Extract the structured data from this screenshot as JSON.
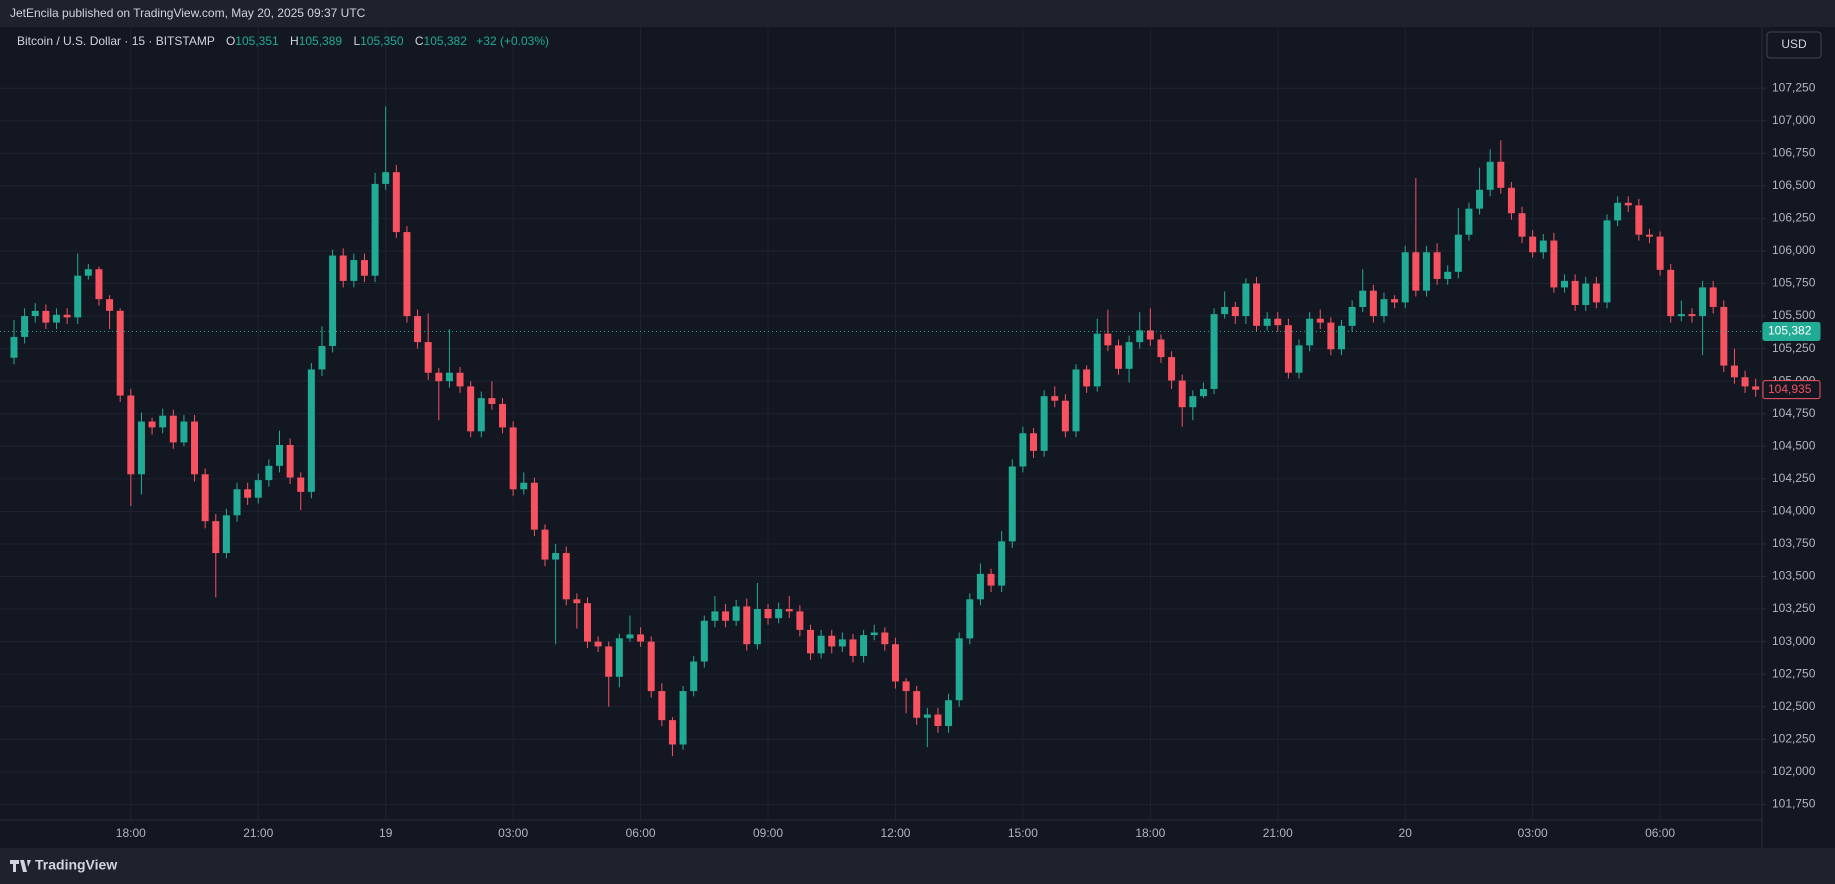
{
  "attribution": "JetEncila published on TradingView.com, May 20, 2025 09:37 UTC",
  "footer": "TradingView",
  "currency_button": "USD",
  "legend": {
    "symbol": "Bitcoin / U.S. Dollar · 15 · BITSTAMP",
    "items": [
      {
        "key": "O",
        "value": "105,351"
      },
      {
        "key": "H",
        "value": "105,389"
      },
      {
        "key": "L",
        "value": "105,350"
      },
      {
        "key": "C",
        "value": "105,382"
      }
    ],
    "change": "+32 (+0.03%)"
  },
  "chart_data": {
    "type": "candlestick",
    "up_color": "#22ab94",
    "down_color": "#f7525f",
    "grid": true,
    "categories": [
      null,
      null,
      null,
      null,
      null,
      null,
      null,
      null,
      null,
      null,
      null,
      "18:00",
      null,
      null,
      null,
      null,
      null,
      null,
      null,
      null,
      null,
      null,
      null,
      "21:00",
      null,
      null,
      null,
      null,
      null,
      null,
      null,
      null,
      null,
      null,
      null,
      "19",
      null,
      null,
      null,
      null,
      null,
      null,
      null,
      null,
      null,
      null,
      null,
      "03:00",
      null,
      null,
      null,
      null,
      null,
      null,
      null,
      null,
      null,
      null,
      null,
      "06:00",
      null,
      null,
      null,
      null,
      null,
      null,
      null,
      null,
      null,
      null,
      null,
      "09:00",
      null,
      null,
      null,
      null,
      null,
      null,
      null,
      null,
      null,
      null,
      null,
      "12:00",
      null,
      null,
      null,
      null,
      null,
      null,
      null,
      null,
      null,
      null,
      null,
      "15:00",
      null,
      null,
      null,
      null,
      null,
      null,
      null,
      null,
      null,
      null,
      null,
      "18:00",
      null,
      null,
      null,
      null,
      null,
      null,
      null,
      null,
      null,
      null,
      null,
      "21:00",
      null,
      null,
      null,
      null,
      null,
      null,
      null,
      null,
      null,
      null,
      null,
      "20",
      null,
      null,
      null,
      null,
      null,
      null,
      null,
      null,
      null,
      null,
      null,
      "03:00",
      null,
      null,
      null,
      null,
      null,
      null,
      null,
      null,
      null,
      null,
      null,
      "06:00",
      null,
      null,
      null,
      null,
      null,
      null,
      null,
      null,
      null
    ],
    "open": [
      105180,
      105340,
      105500,
      105540,
      105450,
      105510,
      105490,
      105810,
      105860,
      105630,
      105540,
      104890,
      104285,
      104690,
      104645,
      104735,
      104530,
      104690,
      104285,
      103925,
      103680,
      103970,
      104170,
      104105,
      104240,
      104350,
      104510,
      104260,
      104150,
      105090,
      105270,
      105965,
      105770,
      105930,
      105810,
      106515,
      106605,
      106145,
      105500,
      105300,
      105065,
      105000,
      105065,
      104960,
      104615,
      104870,
      104825,
      104645,
      104170,
      104220,
      103860,
      103630,
      103680,
      103325,
      103295,
      103000,
      102963,
      102730,
      103025,
      103055,
      103000,
      102620,
      102397,
      102210,
      102620,
      102847,
      103160,
      103232,
      103160,
      103270,
      102980,
      103250,
      103180,
      103250,
      103232,
      103090,
      102910,
      103045,
      102963,
      103017,
      102890,
      103050,
      103070,
      102980,
      102694,
      102620,
      102415,
      102440,
      102352,
      102550,
      103025,
      103325,
      103520,
      103430,
      103770,
      104345,
      104600,
      104465,
      104885,
      104850,
      104615,
      105090,
      104960,
      105365,
      105275,
      105095,
      105300,
      105390,
      105320,
      105185,
      105005,
      104800,
      104885,
      104940,
      105515,
      105570,
      105500,
      105750,
      105425,
      105480,
      105430,
      105065,
      105275,
      105480,
      105450,
      105245,
      105425,
      105570,
      105695,
      105500,
      105630,
      105605,
      105990,
      105695,
      105990,
      105785,
      105840,
      106125,
      106325,
      106470,
      106685,
      106485,
      106290,
      106110,
      105990,
      106080,
      105720,
      105770,
      105585,
      105750,
      105605,
      106235,
      106370,
      106350,
      106125,
      106110,
      105855,
      105500,
      105515,
      105500,
      105720,
      105570,
      105120,
      105030,
      104960
    ],
    "high": [
      105470,
      105560,
      105600,
      105590,
      105560,
      105560,
      105980,
      105900,
      105880,
      105660,
      105560,
      104940,
      104760,
      104720,
      104790,
      104780,
      104740,
      104740,
      104330,
      103980,
      104020,
      104220,
      104220,
      104290,
      104400,
      104620,
      104560,
      104300,
      105140,
      105420,
      106010,
      106020,
      105980,
      105980,
      106600,
      107110,
      106660,
      106190,
      105550,
      105520,
      105100,
      105400,
      105110,
      105000,
      104920,
      105000,
      104870,
      104690,
      104300,
      104260,
      103900,
      103750,
      103730,
      103370,
      103340,
      103040,
      103000,
      103060,
      103200,
      103110,
      103040,
      102680,
      102420,
      102660,
      102890,
      103200,
      103350,
      103290,
      103320,
      103330,
      103450,
      103290,
      103300,
      103350,
      103280,
      103130,
      103090,
      103090,
      103070,
      103060,
      103090,
      103130,
      103110,
      103030,
      102720,
      102660,
      102490,
      102490,
      102600,
      103070,
      103370,
      103600,
      103560,
      103850,
      104400,
      104650,
      104640,
      104930,
      104960,
      104900,
      105130,
      105120,
      105480,
      105550,
      105320,
      105350,
      105530,
      105560,
      105360,
      105230,
      105050,
      104930,
      104990,
      105560,
      105690,
      105610,
      105790,
      105800,
      105530,
      105530,
      105480,
      105320,
      105530,
      105550,
      105490,
      105470,
      105620,
      105860,
      105740,
      105680,
      105660,
      106040,
      106560,
      106040,
      106060,
      105890,
      106330,
      106370,
      106640,
      106780,
      106850,
      106530,
      106340,
      106160,
      106130,
      106140,
      105820,
      105820,
      105800,
      105800,
      106280,
      106420,
      106420,
      106400,
      106170,
      106150,
      105900,
      105620,
      105560,
      105770,
      105770,
      105620,
      105250,
      105080,
      105020
    ],
    "low": [
      105130,
      105290,
      105450,
      105400,
      105400,
      105440,
      105440,
      105780,
      105580,
      105400,
      104840,
      104040,
      104130,
      104590,
      104600,
      104480,
      104500,
      104230,
      103870,
      103340,
      103640,
      103920,
      104050,
      104060,
      104190,
      104300,
      104210,
      104010,
      104100,
      105040,
      105220,
      105720,
      105720,
      105760,
      105760,
      106470,
      106100,
      105450,
      105250,
      105010,
      104700,
      104950,
      104910,
      104570,
      104570,
      104780,
      104600,
      104120,
      104130,
      103810,
      103580,
      102980,
      103280,
      103100,
      102950,
      102920,
      102500,
      102650,
      103000,
      102960,
      102570,
      102350,
      102120,
      102170,
      102580,
      102800,
      103110,
      103110,
      103120,
      102930,
      102940,
      103130,
      103140,
      103180,
      103040,
      102860,
      102870,
      102910,
      102920,
      102840,
      102840,
      103010,
      102930,
      102640,
      102450,
      102360,
      102190,
      102300,
      102300,
      102500,
      102980,
      103280,
      103380,
      103380,
      103720,
      104300,
      104410,
      104420,
      104800,
      104570,
      104570,
      104910,
      104920,
      105230,
      105050,
      104990,
      105250,
      105270,
      105140,
      104940,
      104650,
      104700,
      104870,
      104900,
      105480,
      105440,
      105440,
      105380,
      105390,
      105380,
      105020,
      105020,
      105230,
      105400,
      105200,
      105200,
      105380,
      105530,
      105450,
      105450,
      105560,
      105560,
      105650,
      105650,
      105740,
      105740,
      105790,
      106080,
      106280,
      106420,
      106440,
      106240,
      106060,
      105950,
      105940,
      105680,
      105680,
      105540,
      105540,
      105560,
      105560,
      106190,
      106300,
      106080,
      106060,
      105810,
      105450,
      105460,
      105450,
      105200,
      105520,
      105070,
      104980,
      104910,
      104880
    ],
    "close": [
      105340,
      105500,
      105540,
      105450,
      105510,
      105490,
      105810,
      105860,
      105630,
      105540,
      104890,
      104285,
      104690,
      104645,
      104735,
      104530,
      104690,
      104285,
      103925,
      103680,
      103970,
      104170,
      104105,
      104240,
      104350,
      104510,
      104260,
      104150,
      105090,
      105270,
      105965,
      105770,
      105930,
      105810,
      106515,
      106605,
      106145,
      105500,
      105300,
      105065,
      105000,
      105065,
      104960,
      104615,
      104870,
      104825,
      104645,
      104170,
      104220,
      103860,
      103630,
      103680,
      103325,
      103295,
      103000,
      102963,
      102730,
      103025,
      103055,
      103000,
      102620,
      102397,
      102210,
      102620,
      102847,
      103160,
      103232,
      103160,
      103270,
      102980,
      103250,
      103180,
      103250,
      103232,
      103090,
      102910,
      103045,
      102963,
      103017,
      102890,
      103050,
      103070,
      102980,
      102694,
      102620,
      102415,
      102440,
      102352,
      102550,
      103025,
      103325,
      103520,
      103430,
      103770,
      104345,
      104600,
      104465,
      104885,
      104850,
      104615,
      105090,
      104960,
      105365,
      105275,
      105095,
      105300,
      105390,
      105320,
      105185,
      105005,
      104800,
      104885,
      104940,
      105515,
      105570,
      105500,
      105750,
      105425,
      105480,
      105430,
      105065,
      105275,
      105480,
      105450,
      105245,
      105425,
      105570,
      105695,
      105500,
      105630,
      105605,
      105990,
      105695,
      105990,
      105785,
      105840,
      106125,
      106325,
      106470,
      106685,
      106485,
      106290,
      106110,
      105990,
      106080,
      105720,
      105770,
      105585,
      105750,
      105605,
      106235,
      106370,
      106350,
      106125,
      106110,
      105855,
      105500,
      105515,
      105500,
      105720,
      105570,
      105120,
      105030,
      104960,
      104935
    ],
    "ylim": [
      101630,
      107720
    ],
    "yticks": [
      {
        "value": 101750,
        "label": "101,750"
      },
      {
        "value": 102000,
        "label": "102,000"
      },
      {
        "value": 102250,
        "label": "102,250"
      },
      {
        "value": 102500,
        "label": "102,500"
      },
      {
        "value": 102750,
        "label": "102,750"
      },
      {
        "value": 103000,
        "label": "103,000"
      },
      {
        "value": 103250,
        "label": "103,250"
      },
      {
        "value": 103500,
        "label": "103,500"
      },
      {
        "value": 103750,
        "label": "103,750"
      },
      {
        "value": 104000,
        "label": "104,000"
      },
      {
        "value": 104250,
        "label": "104,250"
      },
      {
        "value": 104500,
        "label": "104,500"
      },
      {
        "value": 104750,
        "label": "104,750"
      },
      {
        "value": 105000,
        "label": "105,000"
      },
      {
        "value": 105250,
        "label": "105,250"
      },
      {
        "value": 105500,
        "label": "105,500"
      },
      {
        "value": 105750,
        "label": "105,750"
      },
      {
        "value": 106000,
        "label": "106,000"
      },
      {
        "value": 106250,
        "label": "106,250"
      },
      {
        "value": 106500,
        "label": "106,500"
      },
      {
        "value": 106750,
        "label": "106,750"
      },
      {
        "value": 107000,
        "label": "107,000"
      },
      {
        "value": 107250,
        "label": "107,250"
      }
    ],
    "price_lines": [
      {
        "value": 105382,
        "label": "105,382",
        "color": "#22ab94",
        "style": "filled"
      },
      {
        "value": 104935,
        "label": "104,935",
        "color": "#f7525f",
        "style": "outline"
      }
    ]
  }
}
